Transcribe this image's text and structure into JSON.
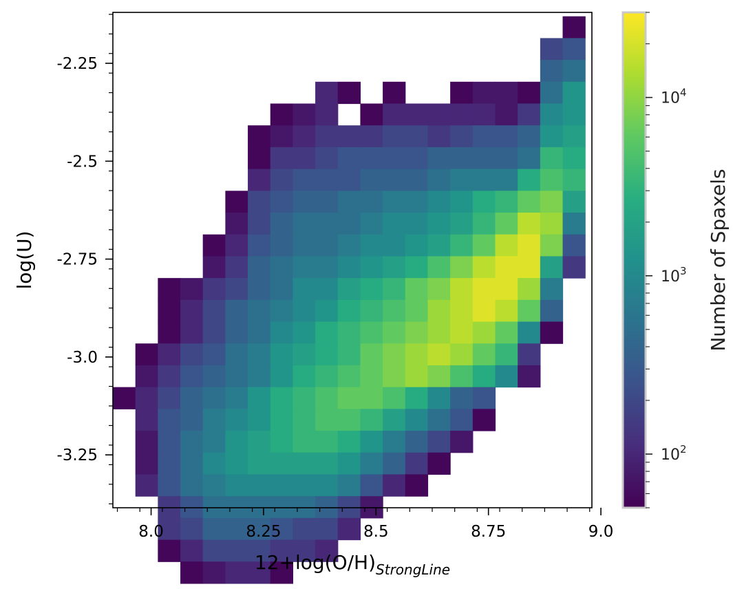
{
  "chart_data": {
    "type": "heatmap",
    "xlabel": "12+log(O/H)",
    "xlabel_subscript": "StrongLine",
    "ylabel": "log(U)",
    "xlim": [
      7.915,
      8.98
    ],
    "ylim": [
      -3.385,
      -2.12
    ],
    "x_ticks": [
      {
        "value": 8.0,
        "label": "8.0"
      },
      {
        "value": 8.25,
        "label": "8.25"
      },
      {
        "value": 8.5,
        "label": "8.5"
      },
      {
        "value": 8.75,
        "label": "8.75"
      },
      {
        "value": 9.0,
        "label": "9.0"
      }
    ],
    "y_ticks": [
      {
        "value": -2.25,
        "label": "-2.25"
      },
      {
        "value": -2.5,
        "label": "-2.5"
      },
      {
        "value": -2.75,
        "label": "-2.75"
      },
      {
        "value": -3.0,
        "label": "-3.0"
      },
      {
        "value": -3.25,
        "label": "-3.25"
      }
    ],
    "bin_x0": 7.915,
    "bin_dx": 0.05,
    "bin_y_top": -2.13,
    "bin_dy": 0.0557,
    "colorscale": "viridis",
    "colorbar": {
      "title": "Number of Spaxels",
      "scale": "log",
      "range": [
        50,
        30000
      ],
      "ticks": [
        {
          "value": 100,
          "base": "10",
          "exp": "2"
        },
        {
          "value": 1000,
          "base": "10",
          "exp": "3"
        },
        {
          "value": 10000,
          "base": "10",
          "exp": "4"
        }
      ]
    },
    "grid": false,
    "rows": [
      ". . . . . . . . . . . . . . . . . . . . A",
      ". . . . . . . . . . . . . . . . . . . E F",
      ". . . . . . . . . . . . . . . . . . . G H",
      ". . . . . . . . . C A . A . . A B B A H K",
      ". . . . . . . A B C . A C C C C C B D J K",
      ". . . . . . A B C D D D E E D E F F G K L",
      ". . . . . . A D D E F F F F G G G G H N M",
      ". . . . . . C E F F F G G G H I I I M O N",
      ". . . . . A E F G G H H I I J K M N P Q L",
      ". . . . . B E G H H H I J J K L N P S R I",
      ". . . . A C F G H H I J J K L N P S T Q F",
      ". . . . B D G H I I J K L M O Q S T T L D",
      ". . A B D E G H J J L M N P Q S T T R I .",
      ". . A C E G H I J K M N O P R S T S P G .",
      ". . A C E G H J K M N O P Q R S R P J A .",
      ". A C E F H I K L M N P Q R S R P N D . .",
      ". B D F G H I K M N O P Q R Q O M J B . .",
      "A C E G H I K M N O P P O M J G F . . . .",
      ". C F G I J K M N O O N L J H F A . . . .",
      ". B F H I K L M N N M K I G E B . . . . .",
      ". B F H J K L L L L K I G D A . . . . . .",
      ". C F H I J J J J J I F C A . . . . . . .",
      ". . D F H H H H H G E B . . . . . . . . .",
      ". . D E G G G F E E C . . . . . . . . . .",
      ". . A C E E E D D C . . . . . . . . . . .",
      ". . . A B C C A . . . . . . . . . . . . ."
    ],
    "level_counts": {
      "A": 55,
      "B": 75,
      "C": 100,
      "D": 140,
      "E": 195,
      "F": 270,
      "G": 380,
      "H": 520,
      "I": 720,
      "J": 1000,
      "K": 1350,
      "L": 1850,
      "M": 2500,
      "N": 3400,
      "O": 4600,
      "P": 6200,
      "Q": 8400,
      "R": 11500,
      "S": 15500,
      "T": 22000
    }
  }
}
